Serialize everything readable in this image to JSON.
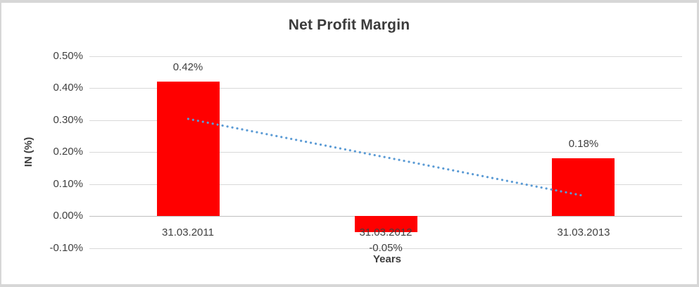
{
  "frame": {
    "border_color": "#d7d7d7",
    "background": "#ffffff"
  },
  "chart_data": {
    "type": "bar",
    "title": "Net Profit Margin",
    "xlabel": "Years",
    "ylabel": "IN (%)",
    "categories": [
      "31.03.2011",
      "31.03.2012",
      "31.03.2013"
    ],
    "values": [
      0.42,
      -0.05,
      0.18
    ],
    "data_labels": [
      "0.42%",
      "-0.05%",
      "0.18%"
    ],
    "ylim": [
      -0.1,
      0.5
    ],
    "ytick_step": 0.1,
    "ytick_labels": [
      "0.50%",
      "0.40%",
      "0.30%",
      "0.20%",
      "0.10%",
      "0.00%",
      "-0.10%"
    ],
    "grid": true,
    "legend": "none",
    "bar_color": "#ff0000",
    "gridline_color": "#d9d9d9",
    "axis_line_color": "#bfbfbf",
    "text_color": "#3f3f3f",
    "trendline": {
      "type": "linear",
      "style": "dotted",
      "color": "#5b9bd5",
      "start_value": 0.3033,
      "end_value": 0.0633
    }
  }
}
